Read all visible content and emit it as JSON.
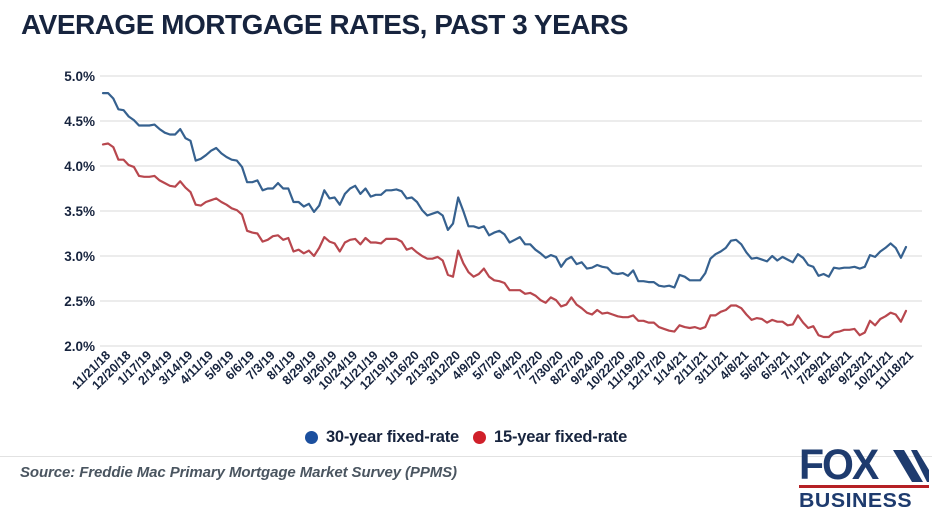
{
  "title": "AVERAGE MORTGAGE RATES, PAST 3 YEARS",
  "legend": [
    {
      "label": "30-year fixed-rate",
      "color": "#1B4F9E"
    },
    {
      "label": "15-year fixed-rate",
      "color": "#D0202A"
    }
  ],
  "source": "Source: Freddie Mac Primary Mortgage Market Survey (PPMS)",
  "logo": {
    "line1": "FOX",
    "line2": "BUSINESS",
    "navy": "#1E3B6E",
    "red": "#B52025"
  },
  "colors": {
    "title_navy": "#17243E",
    "axis_label_navy": "#17243E",
    "gridline_gray": "#DADADA",
    "line_blue": "#36618F",
    "line_red": "#B8474E"
  },
  "chart_data": {
    "type": "line",
    "title": "AVERAGE MORTGAGE RATES, PAST 3 YEARS",
    "xlabel": "",
    "ylabel": "",
    "ylim": [
      2.0,
      5.0
    ],
    "y_ticks": [
      "5.0%",
      "4.5%",
      "4.0%",
      "3.5%",
      "3.0%",
      "2.5%",
      "2.0%"
    ],
    "grid": "horizontal",
    "legend_position": "bottom",
    "x_frequency": "weekly",
    "label_every": 4,
    "x_tick_labels": [
      "11/21/18",
      "12/20/18",
      "1/17/19",
      "2/14/19",
      "3/14/19",
      "4/11/19",
      "5/9/19",
      "6/6/19",
      "7/3/19",
      "8/1/19",
      "8/29/19",
      "9/26/19",
      "10/24/19",
      "11/21/19",
      "12/19/19",
      "1/16/20",
      "2/13/20",
      "3/12/20",
      "4/9/20",
      "5/7/20",
      "6/4/20",
      "7/2/20",
      "7/30/20",
      "8/27/20",
      "9/24/20",
      "10/22/20",
      "11/19/20",
      "12/17/20",
      "1/14/21",
      "2/11/21",
      "3/11/21",
      "4/8/21",
      "5/6/21",
      "6/3/21",
      "7/1/21",
      "7/29/21",
      "8/26/21",
      "9/23/21",
      "10/21/21",
      "11/18/21"
    ],
    "series": [
      {
        "name": "30-year fixed-rate",
        "color": "#36618F",
        "values": [
          4.81,
          4.81,
          4.75,
          4.63,
          4.62,
          4.55,
          4.51,
          4.45,
          4.45,
          4.45,
          4.46,
          4.41,
          4.37,
          4.35,
          4.35,
          4.41,
          4.31,
          4.28,
          4.06,
          4.08,
          4.12,
          4.17,
          4.2,
          4.14,
          4.1,
          4.07,
          4.06,
          3.99,
          3.82,
          3.82,
          3.84,
          3.73,
          3.75,
          3.75,
          3.81,
          3.75,
          3.75,
          3.6,
          3.6,
          3.55,
          3.58,
          3.49,
          3.56,
          3.73,
          3.64,
          3.65,
          3.57,
          3.69,
          3.75,
          3.78,
          3.69,
          3.75,
          3.66,
          3.68,
          3.68,
          3.73,
          3.73,
          3.74,
          3.72,
          3.64,
          3.65,
          3.6,
          3.51,
          3.45,
          3.47,
          3.49,
          3.45,
          3.29,
          3.36,
          3.65,
          3.5,
          3.33,
          3.33,
          3.31,
          3.33,
          3.23,
          3.26,
          3.28,
          3.24,
          3.15,
          3.18,
          3.21,
          3.13,
          3.13,
          3.07,
          3.03,
          2.98,
          3.01,
          2.99,
          2.88,
          2.96,
          2.99,
          2.91,
          2.93,
          2.86,
          2.87,
          2.9,
          2.88,
          2.87,
          2.81,
          2.8,
          2.81,
          2.78,
          2.84,
          2.72,
          2.72,
          2.71,
          2.71,
          2.67,
          2.66,
          2.67,
          2.65,
          2.79,
          2.77,
          2.73,
          2.73,
          2.73,
          2.81,
          2.97,
          3.02,
          3.05,
          3.09,
          3.17,
          3.18,
          3.13,
          3.04,
          2.97,
          2.98,
          2.96,
          2.94,
          3.0,
          2.95,
          2.99,
          2.96,
          2.93,
          3.02,
          2.98,
          2.9,
          2.88,
          2.78,
          2.8,
          2.77,
          2.87,
          2.86,
          2.87,
          2.87,
          2.88,
          2.86,
          2.88,
          3.01,
          2.99,
          3.05,
          3.09,
          3.14,
          3.09,
          2.98,
          3.1
        ]
      },
      {
        "name": "15-year fixed-rate",
        "color": "#B8474E",
        "values": [
          4.24,
          4.25,
          4.21,
          4.07,
          4.07,
          4.01,
          3.99,
          3.89,
          3.88,
          3.88,
          3.89,
          3.84,
          3.81,
          3.78,
          3.77,
          3.83,
          3.76,
          3.71,
          3.57,
          3.56,
          3.6,
          3.62,
          3.64,
          3.6,
          3.57,
          3.53,
          3.51,
          3.46,
          3.28,
          3.26,
          3.25,
          3.16,
          3.18,
          3.22,
          3.23,
          3.18,
          3.2,
          3.05,
          3.07,
          3.03,
          3.06,
          3.0,
          3.09,
          3.21,
          3.16,
          3.14,
          3.05,
          3.15,
          3.18,
          3.19,
          3.13,
          3.2,
          3.15,
          3.15,
          3.14,
          3.19,
          3.19,
          3.19,
          3.16,
          3.07,
          3.09,
          3.04,
          3.0,
          2.97,
          2.97,
          2.99,
          2.95,
          2.79,
          2.77,
          3.06,
          2.92,
          2.82,
          2.77,
          2.8,
          2.86,
          2.77,
          2.73,
          2.72,
          2.7,
          2.62,
          2.62,
          2.62,
          2.58,
          2.59,
          2.56,
          2.51,
          2.48,
          2.54,
          2.51,
          2.44,
          2.46,
          2.54,
          2.46,
          2.42,
          2.37,
          2.35,
          2.4,
          2.36,
          2.37,
          2.35,
          2.33,
          2.32,
          2.32,
          2.34,
          2.28,
          2.28,
          2.26,
          2.26,
          2.21,
          2.19,
          2.17,
          2.16,
          2.23,
          2.21,
          2.2,
          2.21,
          2.19,
          2.21,
          2.34,
          2.34,
          2.38,
          2.4,
          2.45,
          2.45,
          2.42,
          2.35,
          2.29,
          2.31,
          2.3,
          2.26,
          2.29,
          2.27,
          2.27,
          2.23,
          2.24,
          2.34,
          2.26,
          2.2,
          2.22,
          2.12,
          2.1,
          2.1,
          2.15,
          2.16,
          2.18,
          2.18,
          2.19,
          2.12,
          2.15,
          2.28,
          2.23,
          2.3,
          2.33,
          2.37,
          2.35,
          2.27,
          2.39
        ]
      }
    ]
  }
}
